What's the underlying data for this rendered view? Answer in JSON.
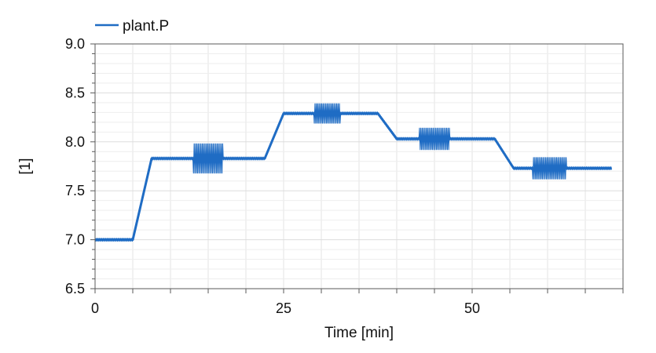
{
  "chart_data": {
    "type": "line",
    "title": "",
    "xlabel": "Time [min]",
    "ylabel": "[1]",
    "xlim": [
      0,
      70
    ],
    "ylim": [
      6.5,
      9.0
    ],
    "xticks": [
      0,
      25,
      50
    ],
    "xtick_labels": [
      "0",
      "25",
      "50"
    ],
    "yticks": [
      6.5,
      7.0,
      7.5,
      8.0,
      8.5,
      9.0
    ],
    "ytick_labels": [
      "6.5",
      "7.0",
      "7.5",
      "8.0",
      "8.5",
      "9.0"
    ],
    "grid": true,
    "legend_position": "top-left",
    "series": [
      {
        "name": "plant.P",
        "color": "#1f6cc4",
        "x": [
          0.0,
          5.0,
          7.5,
          13.0,
          17.0,
          22.5,
          25.0,
          29.0,
          32.5,
          37.5,
          40.0,
          43.0,
          47.0,
          53.0,
          55.5,
          58.0,
          62.5,
          68.5
        ],
        "y": [
          7.0,
          7.0,
          7.83,
          7.83,
          7.83,
          7.83,
          8.29,
          8.29,
          8.29,
          8.29,
          8.03,
          8.03,
          8.03,
          8.03,
          7.73,
          7.73,
          7.73,
          7.73
        ],
        "noise_band": 0.015,
        "oscillation_segments": [
          {
            "x": [
              13.0,
              17.0
            ],
            "amplitude": 0.15
          },
          {
            "x": [
              29.0,
              32.5
            ],
            "amplitude": 0.1
          },
          {
            "x": [
              43.0,
              47.0
            ],
            "amplitude": 0.11
          },
          {
            "x": [
              58.0,
              62.5
            ],
            "amplitude": 0.11
          }
        ]
      }
    ]
  }
}
